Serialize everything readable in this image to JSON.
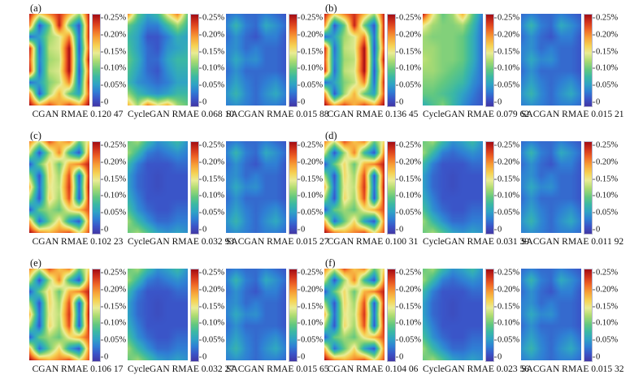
{
  "figure_title": "",
  "chart_data": {
    "type": "heatmap",
    "metric": "RMAE",
    "value_unit": "%",
    "value_range": [
      0,
      0.25
    ],
    "colorbar_ticks": [
      "0.25%",
      "0.20%",
      "0.15%",
      "0.10%",
      "0.05%",
      "0"
    ],
    "panels": [
      {
        "label": "(a)",
        "maps": [
          {
            "method": "CGAN",
            "rmae": "0.120 47",
            "pattern": "cgan_v1"
          },
          {
            "method": "CycleGAN",
            "rmae": "0.068 10",
            "pattern": "cyclegan_a"
          },
          {
            "method": "SACGAN",
            "rmae": "0.015 88",
            "pattern": "sacgan"
          }
        ]
      },
      {
        "label": "(b)",
        "maps": [
          {
            "method": "CGAN",
            "rmae": "0.136 45",
            "pattern": "cgan_v1"
          },
          {
            "method": "CycleGAN",
            "rmae": "0.079 62",
            "pattern": "cyclegan_b"
          },
          {
            "method": "SACGAN",
            "rmae": "0.015 21",
            "pattern": "sacgan"
          }
        ]
      },
      {
        "label": "(c)",
        "maps": [
          {
            "method": "CGAN",
            "rmae": "0.102 23",
            "pattern": "cgan_v2"
          },
          {
            "method": "CycleGAN",
            "rmae": "0.032 93",
            "pattern": "cyclegan_low"
          },
          {
            "method": "SACGAN",
            "rmae": "0.015 27",
            "pattern": "sacgan"
          }
        ]
      },
      {
        "label": "(d)",
        "maps": [
          {
            "method": "CGAN",
            "rmae": "0.100 31",
            "pattern": "cgan_v2"
          },
          {
            "method": "CycleGAN",
            "rmae": "0.031 39",
            "pattern": "cyclegan_low"
          },
          {
            "method": "SACGAN",
            "rmae": "0.011 92",
            "pattern": "sacgan"
          }
        ]
      },
      {
        "label": "(e)",
        "maps": [
          {
            "method": "CGAN",
            "rmae": "0.106 17",
            "pattern": "cgan_v2"
          },
          {
            "method": "CycleGAN",
            "rmae": "0.032 27",
            "pattern": "cyclegan_low"
          },
          {
            "method": "SACGAN",
            "rmae": "0.015 65",
            "pattern": "sacgan"
          }
        ]
      },
      {
        "label": "(f)",
        "maps": [
          {
            "method": "CGAN",
            "rmae": "0.104 06",
            "pattern": "cgan_v2"
          },
          {
            "method": "CycleGAN",
            "rmae": "0.023 56",
            "pattern": "cyclegan_low"
          },
          {
            "method": "SACGAN",
            "rmae": "0.015 32",
            "pattern": "sacgan"
          }
        ]
      }
    ],
    "patterns": {
      "cgan_v1": [
        [
          0.24,
          0.16,
          0.2,
          0.23,
          0.18,
          0.12,
          0.24
        ],
        [
          0.2,
          0.02,
          0.1,
          0.24,
          0.1,
          0.02,
          0.24
        ],
        [
          0.03,
          0.06,
          0.12,
          0.14,
          0.2,
          0.03,
          0.24
        ],
        [
          0.24,
          0.03,
          0.13,
          0.14,
          0.25,
          0.02,
          0.22
        ],
        [
          0.22,
          0.04,
          0.12,
          0.13,
          0.25,
          0.03,
          0.25
        ],
        [
          0.24,
          0.03,
          0.13,
          0.14,
          0.25,
          0.02,
          0.22
        ],
        [
          0.03,
          0.06,
          0.11,
          0.13,
          0.2,
          0.03,
          0.24
        ],
        [
          0.2,
          0.02,
          0.12,
          0.18,
          0.1,
          0.06,
          0.22
        ],
        [
          0.25,
          0.18,
          0.22,
          0.18,
          0.22,
          0.18,
          0.25
        ]
      ],
      "cgan_v2": [
        [
          0.2,
          0.14,
          0.22,
          0.17,
          0.2,
          0.1,
          0.16
        ],
        [
          0.14,
          0.02,
          0.12,
          0.2,
          0.08,
          0.02,
          0.2
        ],
        [
          0.02,
          0.1,
          0.16,
          0.1,
          0.18,
          0.2,
          0.24
        ],
        [
          0.12,
          0.02,
          0.16,
          0.12,
          0.22,
          0.02,
          0.24
        ],
        [
          0.18,
          0.03,
          0.15,
          0.13,
          0.23,
          0.03,
          0.25
        ],
        [
          0.12,
          0.02,
          0.16,
          0.12,
          0.22,
          0.02,
          0.24
        ],
        [
          0.02,
          0.1,
          0.12,
          0.1,
          0.15,
          0.18,
          0.22
        ],
        [
          0.18,
          0.03,
          0.1,
          0.16,
          0.06,
          0.02,
          0.2
        ],
        [
          0.25,
          0.2,
          0.18,
          0.2,
          0.22,
          0.15,
          0.22
        ]
      ],
      "cyclegan_a": [
        [
          0.2,
          0.1,
          0.06,
          0.08,
          0.15,
          0.2,
          0.1
        ],
        [
          0.1,
          0.07,
          0.04,
          0.04,
          0.08,
          0.12,
          0.08
        ],
        [
          0.08,
          0.06,
          0.02,
          0.02,
          0.04,
          0.07,
          0.06
        ],
        [
          0.09,
          0.06,
          0.03,
          0.02,
          0.05,
          0.06,
          0.07
        ],
        [
          0.1,
          0.07,
          0.03,
          0.03,
          0.06,
          0.08,
          0.08
        ],
        [
          0.09,
          0.06,
          0.03,
          0.02,
          0.05,
          0.07,
          0.07
        ],
        [
          0.08,
          0.05,
          0.04,
          0.03,
          0.04,
          0.06,
          0.06
        ],
        [
          0.12,
          0.08,
          0.06,
          0.05,
          0.06,
          0.08,
          0.08
        ],
        [
          0.18,
          0.12,
          0.2,
          0.15,
          0.18,
          0.12,
          0.1
        ]
      ],
      "cyclegan_b": [
        [
          0.24,
          0.15,
          0.1,
          0.12,
          0.18,
          0.1,
          0.04
        ],
        [
          0.15,
          0.12,
          0.11,
          0.11,
          0.12,
          0.08,
          0.03
        ],
        [
          0.12,
          0.11,
          0.11,
          0.11,
          0.1,
          0.07,
          0.03
        ],
        [
          0.12,
          0.12,
          0.11,
          0.11,
          0.1,
          0.07,
          0.03
        ],
        [
          0.13,
          0.12,
          0.11,
          0.11,
          0.1,
          0.07,
          0.03
        ],
        [
          0.12,
          0.12,
          0.11,
          0.1,
          0.09,
          0.06,
          0.03
        ],
        [
          0.11,
          0.11,
          0.1,
          0.09,
          0.08,
          0.05,
          0.03
        ],
        [
          0.1,
          0.1,
          0.09,
          0.08,
          0.06,
          0.04,
          0.02
        ],
        [
          0.07,
          0.09,
          0.11,
          0.08,
          0.05,
          0.03,
          0.02
        ]
      ],
      "cyclegan_low": [
        [
          0.1,
          0.12,
          0.08,
          0.05,
          0.06,
          0.08,
          0.05
        ],
        [
          0.12,
          0.08,
          0.04,
          0.03,
          0.04,
          0.05,
          0.04
        ],
        [
          0.08,
          0.04,
          0.02,
          0.02,
          0.02,
          0.03,
          0.03
        ],
        [
          0.06,
          0.03,
          0.02,
          0.015,
          0.02,
          0.02,
          0.02
        ],
        [
          0.06,
          0.03,
          0.02,
          0.015,
          0.02,
          0.02,
          0.02
        ],
        [
          0.07,
          0.04,
          0.02,
          0.02,
          0.02,
          0.02,
          0.02
        ],
        [
          0.09,
          0.05,
          0.03,
          0.02,
          0.02,
          0.03,
          0.03
        ],
        [
          0.12,
          0.08,
          0.05,
          0.03,
          0.03,
          0.04,
          0.04
        ],
        [
          0.1,
          0.12,
          0.09,
          0.06,
          0.05,
          0.06,
          0.05
        ]
      ],
      "sacgan": [
        [
          0.03,
          0.04,
          0.03,
          0.03,
          0.04,
          0.03,
          0.02
        ],
        [
          0.04,
          0.075,
          0.04,
          0.03,
          0.065,
          0.05,
          0.03
        ],
        [
          0.03,
          0.05,
          0.03,
          0.02,
          0.04,
          0.04,
          0.02
        ],
        [
          0.04,
          0.05,
          0.03,
          0.04,
          0.03,
          0.03,
          0.02
        ],
        [
          0.04,
          0.065,
          0.045,
          0.05,
          0.03,
          0.03,
          0.02
        ],
        [
          0.03,
          0.05,
          0.03,
          0.03,
          0.03,
          0.03,
          0.02
        ],
        [
          0.04,
          0.06,
          0.04,
          0.03,
          0.04,
          0.05,
          0.03
        ],
        [
          0.05,
          0.075,
          0.045,
          0.03,
          0.05,
          0.065,
          0.04
        ],
        [
          0.04,
          0.05,
          0.04,
          0.03,
          0.04,
          0.04,
          0.03
        ]
      ]
    },
    "colormap": [
      [
        0.0,
        "#4238a6"
      ],
      [
        0.08,
        "#3a55c8"
      ],
      [
        0.16,
        "#2f7fd4"
      ],
      [
        0.24,
        "#2fa3c4"
      ],
      [
        0.32,
        "#3bb8a4"
      ],
      [
        0.4,
        "#63c87f"
      ],
      [
        0.5,
        "#b0dc72"
      ],
      [
        0.58,
        "#e9ec95"
      ],
      [
        0.66,
        "#f6d254"
      ],
      [
        0.75,
        "#f7a138"
      ],
      [
        0.84,
        "#ee6425"
      ],
      [
        0.92,
        "#d2331c"
      ],
      [
        1.0,
        "#a30e15"
      ]
    ]
  }
}
